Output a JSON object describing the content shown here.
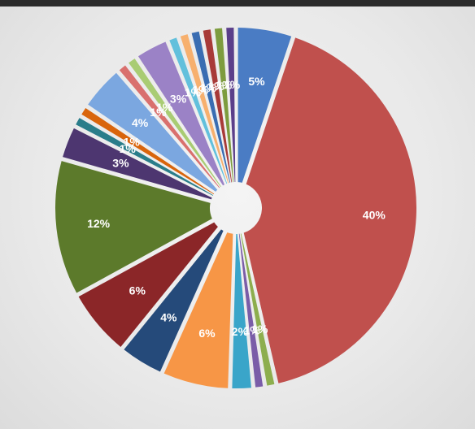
{
  "chart_data": {
    "type": "pie",
    "title": "",
    "data_label_format": "percent",
    "slices": [
      {
        "label": "5%",
        "value": 5,
        "color": "#4a7cc4"
      },
      {
        "label": "40%",
        "value": 40,
        "color": "#c0504d"
      },
      {
        "label": "1%",
        "value": 1,
        "color": "#8dae4e"
      },
      {
        "label": "1%",
        "value": 1,
        "color": "#7a5da8"
      },
      {
        "label": "2%",
        "value": 2,
        "color": "#3aa5c9"
      },
      {
        "label": "6%",
        "value": 6,
        "color": "#f79646"
      },
      {
        "label": "4%",
        "value": 4,
        "color": "#254a7a"
      },
      {
        "label": "6%",
        "value": 6,
        "color": "#8b2628"
      },
      {
        "label": "12%",
        "value": 12,
        "color": "#5c7a2b"
      },
      {
        "label": "3%",
        "value": 3,
        "color": "#4d3670"
      },
      {
        "label": "1%",
        "value": 1,
        "color": "#2a7d8a"
      },
      {
        "label": "1%",
        "value": 1,
        "color": "#d9650c"
      },
      {
        "label": "4%",
        "value": 4,
        "color": "#7ba7e0"
      },
      {
        "label": "1%",
        "value": 1,
        "color": "#d9706e"
      },
      {
        "label": "1%",
        "value": 1,
        "color": "#a9cc73"
      },
      {
        "label": "3%",
        "value": 3,
        "color": "#9b82c6"
      },
      {
        "label": "1%",
        "value": 1,
        "color": "#62c0dc"
      },
      {
        "label": "1%",
        "value": 1,
        "color": "#f7b06e"
      },
      {
        "label": "1%",
        "value": 1,
        "color": "#3a6db2"
      },
      {
        "label": "1%",
        "value": 1,
        "color": "#a83a38"
      },
      {
        "label": "1%",
        "value": 1,
        "color": "#7d9c3e"
      },
      {
        "label": "1%",
        "value": 1,
        "color": "#5b3f8a"
      }
    ]
  }
}
